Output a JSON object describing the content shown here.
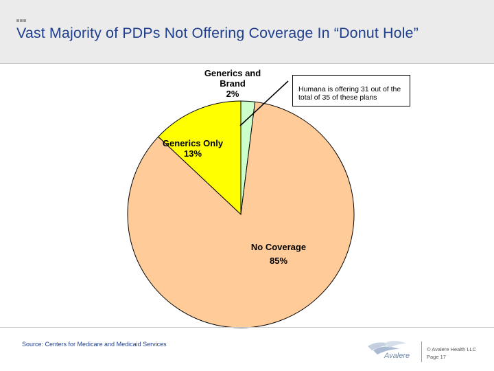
{
  "header": {
    "title": "Vast Majority of PDPs Not Offering Coverage In “Donut Hole”"
  },
  "chart_data": {
    "type": "pie",
    "title": "Vast Majority of PDPs Not Offering Coverage In “Donut Hole”",
    "slices": [
      {
        "name": "Generics and Brand",
        "value": 2,
        "label": "2%",
        "label_lines": [
          "Generics and",
          "Brand"
        ],
        "color": "#ccffcc"
      },
      {
        "name": "No Coverage",
        "value": 85,
        "label": "85%",
        "label_lines": [
          "No Coverage"
        ],
        "color": "#ffcc99"
      },
      {
        "name": "Generics Only",
        "value": 13,
        "label": "13%",
        "label_lines": [
          "Generics Only"
        ],
        "color": "#ffff00"
      }
    ],
    "annotation": "Humana is offering 31 out of the total of 35 of these plans"
  },
  "footer": {
    "source": "Source: Centers for Medicare and Medicaid Services",
    "logo_text": "Avalere",
    "copyright": "© Avalere Health LLC",
    "page": "Page 17"
  },
  "colors": {
    "title": "#1f3f8f",
    "header_bg": "#ebebeb"
  }
}
